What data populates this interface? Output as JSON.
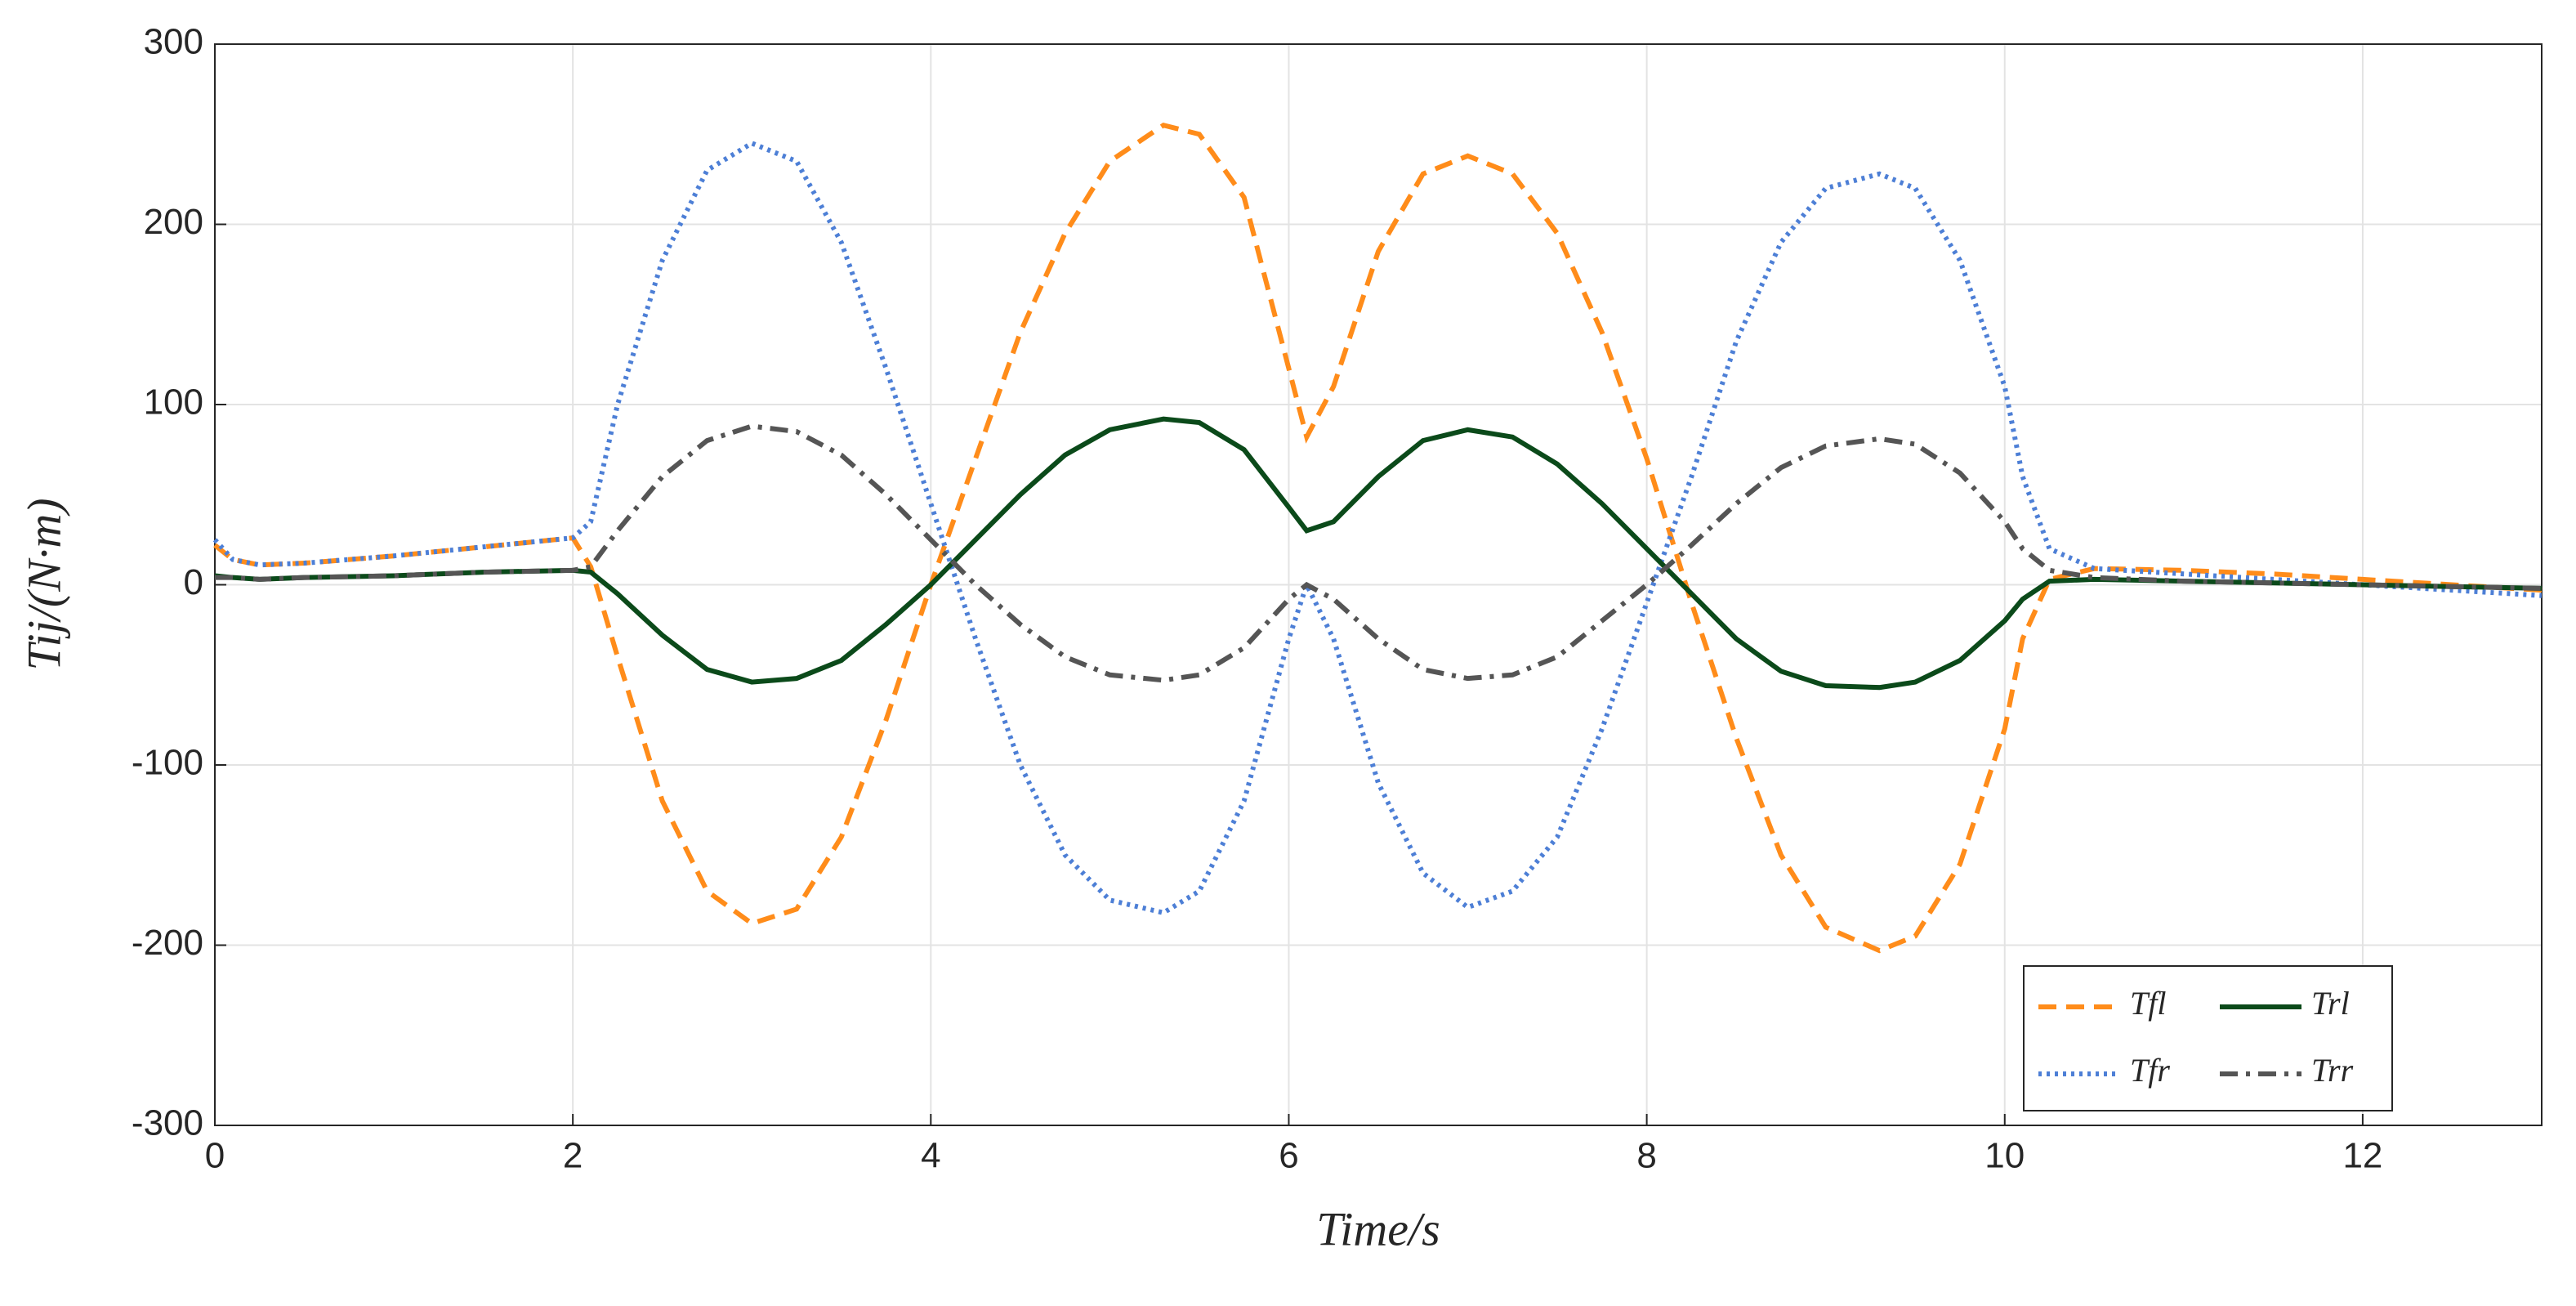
{
  "chart_data": {
    "type": "line",
    "x_label": "Time/s",
    "y_label": "Tij/(N·m)",
    "x": [
      0,
      0.1,
      0.25,
      0.5,
      1,
      1.5,
      2,
      2.1,
      2.25,
      2.5,
      2.75,
      3,
      3.25,
      3.5,
      3.75,
      4,
      4.25,
      4.5,
      4.75,
      5,
      5.3,
      5.5,
      5.75,
      6,
      6.1,
      6.25,
      6.5,
      6.75,
      7,
      7.25,
      7.5,
      7.75,
      8,
      8.25,
      8.5,
      8.75,
      9,
      9.3,
      9.5,
      9.75,
      10,
      10.1,
      10.25,
      10.5,
      11,
      11.5,
      12,
      12.5,
      13
    ],
    "series": [
      {
        "name": "Tfl",
        "color": "#ff8c1a",
        "linestyle": "dashed",
        "values": [
          22,
          14,
          11,
          12,
          16,
          21,
          26,
          10,
          -40,
          -120,
          -170,
          -188,
          -180,
          -140,
          -75,
          0,
          70,
          140,
          195,
          235,
          255,
          250,
          215,
          120,
          82,
          110,
          185,
          228,
          238,
          228,
          195,
          140,
          70,
          -10,
          -85,
          -150,
          -190,
          -203,
          -195,
          -155,
          -80,
          -30,
          3,
          9,
          8,
          6,
          3,
          0,
          -3
        ]
      },
      {
        "name": "Tfr",
        "color": "#4d7fd6",
        "linestyle": "dotted",
        "values": [
          25,
          14,
          11,
          12,
          16,
          21,
          26,
          35,
          100,
          180,
          230,
          245,
          235,
          190,
          120,
          45,
          -30,
          -100,
          -150,
          -175,
          -182,
          -170,
          -120,
          -30,
          0,
          -30,
          -110,
          -160,
          -179,
          -170,
          -140,
          -80,
          -10,
          60,
          135,
          190,
          220,
          228,
          220,
          180,
          110,
          60,
          20,
          9,
          6,
          3,
          0,
          -3,
          -6
        ]
      },
      {
        "name": "Trl",
        "color": "#0b4a1a",
        "linestyle": "solid",
        "values": [
          5,
          4,
          3,
          4,
          5,
          7,
          8,
          7,
          -5,
          -28,
          -47,
          -54,
          -52,
          -42,
          -22,
          0,
          25,
          50,
          72,
          86,
          92,
          90,
          75,
          43,
          30,
          35,
          60,
          80,
          86,
          82,
          67,
          45,
          20,
          -5,
          -30,
          -48,
          -56,
          -57,
          -54,
          -42,
          -20,
          -8,
          2,
          3,
          2,
          1,
          0,
          -1,
          -2
        ]
      },
      {
        "name": "Trr",
        "color": "#555555",
        "linestyle": "dashdot",
        "values": [
          4,
          4,
          3,
          4,
          5,
          7,
          8,
          10,
          30,
          60,
          80,
          88,
          85,
          72,
          50,
          25,
          0,
          -22,
          -40,
          -50,
          -53,
          -50,
          -35,
          -8,
          0,
          -8,
          -30,
          -47,
          -52,
          -50,
          -40,
          -20,
          0,
          22,
          45,
          65,
          77,
          81,
          78,
          62,
          35,
          20,
          8,
          4,
          2,
          1,
          0,
          -1,
          -2
        ]
      }
    ],
    "xlim": [
      0,
      13
    ],
    "xticks": [
      0,
      2,
      4,
      6,
      8,
      10,
      12
    ],
    "ylim": [
      -300,
      300
    ],
    "yticks": [
      -300,
      -200,
      -100,
      0,
      100,
      200,
      300
    ],
    "grid": true,
    "legend": "lower right"
  }
}
